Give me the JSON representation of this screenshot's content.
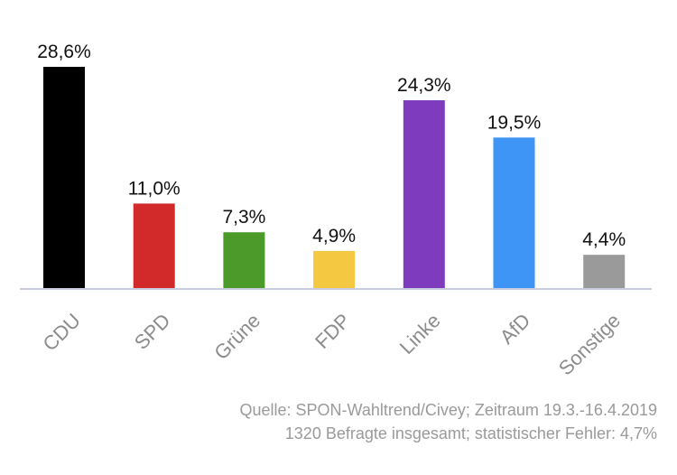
{
  "chart_data": {
    "type": "bar",
    "title": "",
    "xlabel": "",
    "ylabel": "",
    "ylim": [
      0,
      30
    ],
    "grid": false,
    "categories": [
      "CDU",
      "SPD",
      "Grüne",
      "FDP",
      "Linke",
      "AfD",
      "Sonstige"
    ],
    "values": [
      28.6,
      11.0,
      7.3,
      4.9,
      24.3,
      19.5,
      4.4
    ],
    "value_labels": [
      "28,6%",
      "11,0%",
      "7,3%",
      "4,9%",
      "24,3%",
      "19,5%",
      "4,4%"
    ],
    "colors": [
      "#000000",
      "#d22a2a",
      "#4b9a2a",
      "#f5c842",
      "#7f3bbd",
      "#3e95f5",
      "#9a9a9a"
    ],
    "axis_color": "#c8cde0"
  },
  "source": {
    "line1": "Quelle: SPON-Wahltrend/Civey; Zeitraum 19.3.-16.4.2019",
    "line2": "1320 Befragte insgesamt; statistischer Fehler: 4,7%"
  }
}
